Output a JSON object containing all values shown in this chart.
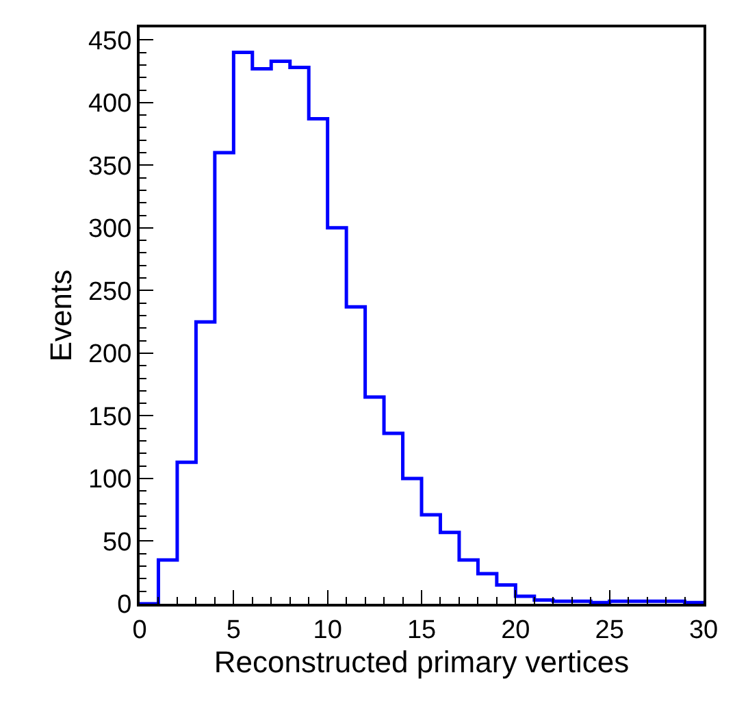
{
  "chart_data": {
    "type": "histogram",
    "xlabel": "Reconstructed primary vertices",
    "ylabel": "Events",
    "bins": [
      0,
      1,
      2,
      3,
      4,
      5,
      6,
      7,
      8,
      9,
      10,
      11,
      12,
      13,
      14,
      15,
      16,
      17,
      18,
      19,
      20,
      21,
      22,
      23,
      24,
      25,
      26,
      27,
      28,
      29,
      30
    ],
    "values": [
      0,
      35,
      113,
      225,
      360,
      440,
      427,
      433,
      428,
      387,
      300,
      237,
      165,
      136,
      100,
      71,
      57,
      35,
      24,
      15,
      6,
      3,
      2,
      2,
      1,
      2,
      2,
      2,
      2,
      1
    ],
    "color": "#0000ff",
    "xlim": [
      0,
      30
    ],
    "xticks": [
      0,
      5,
      10,
      15,
      20,
      25,
      30
    ],
    "ylim": [
      0,
      460
    ],
    "yticks": [
      0,
      50,
      100,
      150,
      200,
      250,
      300,
      350,
      400,
      450
    ]
  }
}
